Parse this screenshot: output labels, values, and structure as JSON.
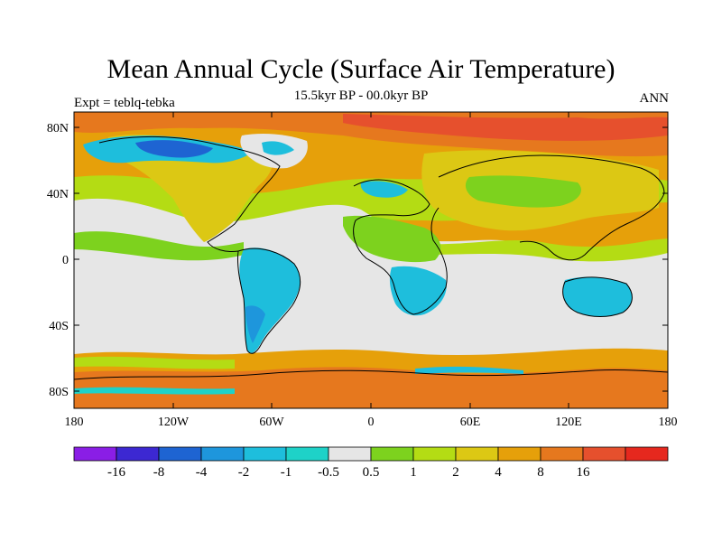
{
  "title": "Mean Annual Cycle (Surface Air Temperature)",
  "subtitle": "15.5kyr BP - 00.0kyr BP",
  "left_label": "Expt = teblq-tebka",
  "right_label": "ANN",
  "lat_ticks": [
    "80N",
    "40N",
    "0",
    "40S",
    "80S"
  ],
  "lon_ticks": [
    "180",
    "120W",
    "60W",
    "0",
    "60E",
    "120E",
    "180"
  ],
  "colorbar": {
    "colors": [
      "#8a1ee6",
      "#3c28d2",
      "#1e64d2",
      "#1e96dc",
      "#1ebedc",
      "#1ed2c8",
      "#e6e6e6",
      "#7dd21e",
      "#b4dc14",
      "#dcc814",
      "#e6a00a",
      "#e6781e",
      "#e6502d",
      "#e6281e"
    ],
    "labels": [
      "-16",
      "-8",
      "-4",
      "-2",
      "-1",
      "-0.5",
      "0.5",
      "1",
      "2",
      "4",
      "8",
      "16"
    ]
  }
}
